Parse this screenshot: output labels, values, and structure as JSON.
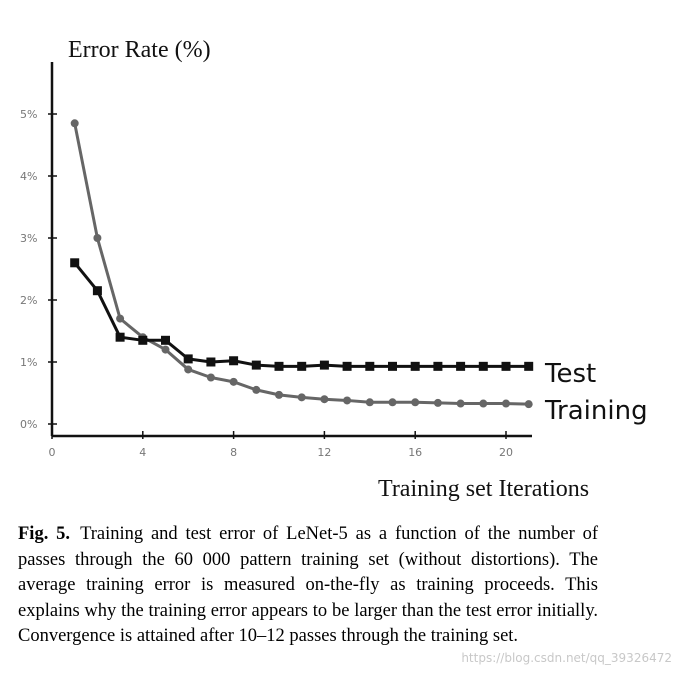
{
  "chart_data": {
    "type": "line",
    "ylabel": "Error Rate (%)",
    "xlabel": "Training set Iterations",
    "x_ticks": [
      0,
      4,
      8,
      12,
      16,
      20
    ],
    "y_ticks": [
      0,
      1,
      2,
      3,
      4,
      5
    ],
    "y_tick_labels": [
      "0%",
      "1%",
      "2%",
      "3%",
      "4%",
      "5%"
    ],
    "x_tick_labels": [
      "0",
      "4",
      "8",
      "12",
      "16",
      "20"
    ],
    "xlim": [
      0,
      21
    ],
    "ylim": [
      0,
      5.8
    ],
    "x": [
      1,
      2,
      3,
      4,
      5,
      6,
      7,
      8,
      9,
      10,
      11,
      12,
      13,
      14,
      15,
      16,
      17,
      18,
      19,
      20,
      21
    ],
    "series": [
      {
        "name": "Test",
        "color": "#111111",
        "marker": "square",
        "values": [
          2.6,
          2.15,
          1.4,
          1.35,
          1.35,
          1.05,
          1.0,
          1.02,
          0.95,
          0.93,
          0.93,
          0.95,
          0.93,
          0.93,
          0.93,
          0.93,
          0.93,
          0.93,
          0.93,
          0.93,
          0.93
        ]
      },
      {
        "name": "Training",
        "color": "#666666",
        "marker": "circle",
        "values": [
          4.85,
          3.0,
          1.7,
          1.4,
          1.2,
          0.88,
          0.75,
          0.68,
          0.55,
          0.47,
          0.43,
          0.4,
          0.38,
          0.35,
          0.35,
          0.35,
          0.34,
          0.33,
          0.33,
          0.33,
          0.32
        ]
      }
    ]
  },
  "caption": {
    "label": "Fig. 5.",
    "text": "Training and test error of LeNet-5 as a function of the number of passes through the 60 000 pattern training set (without distortions). The average training error is measured on-the-fly as training proceeds. This explains why the training error appears to be larger than the test error initially. Convergence is attained after 10–12 passes through the training set."
  },
  "watermark": "https://blog.csdn.net/qq_39326472"
}
